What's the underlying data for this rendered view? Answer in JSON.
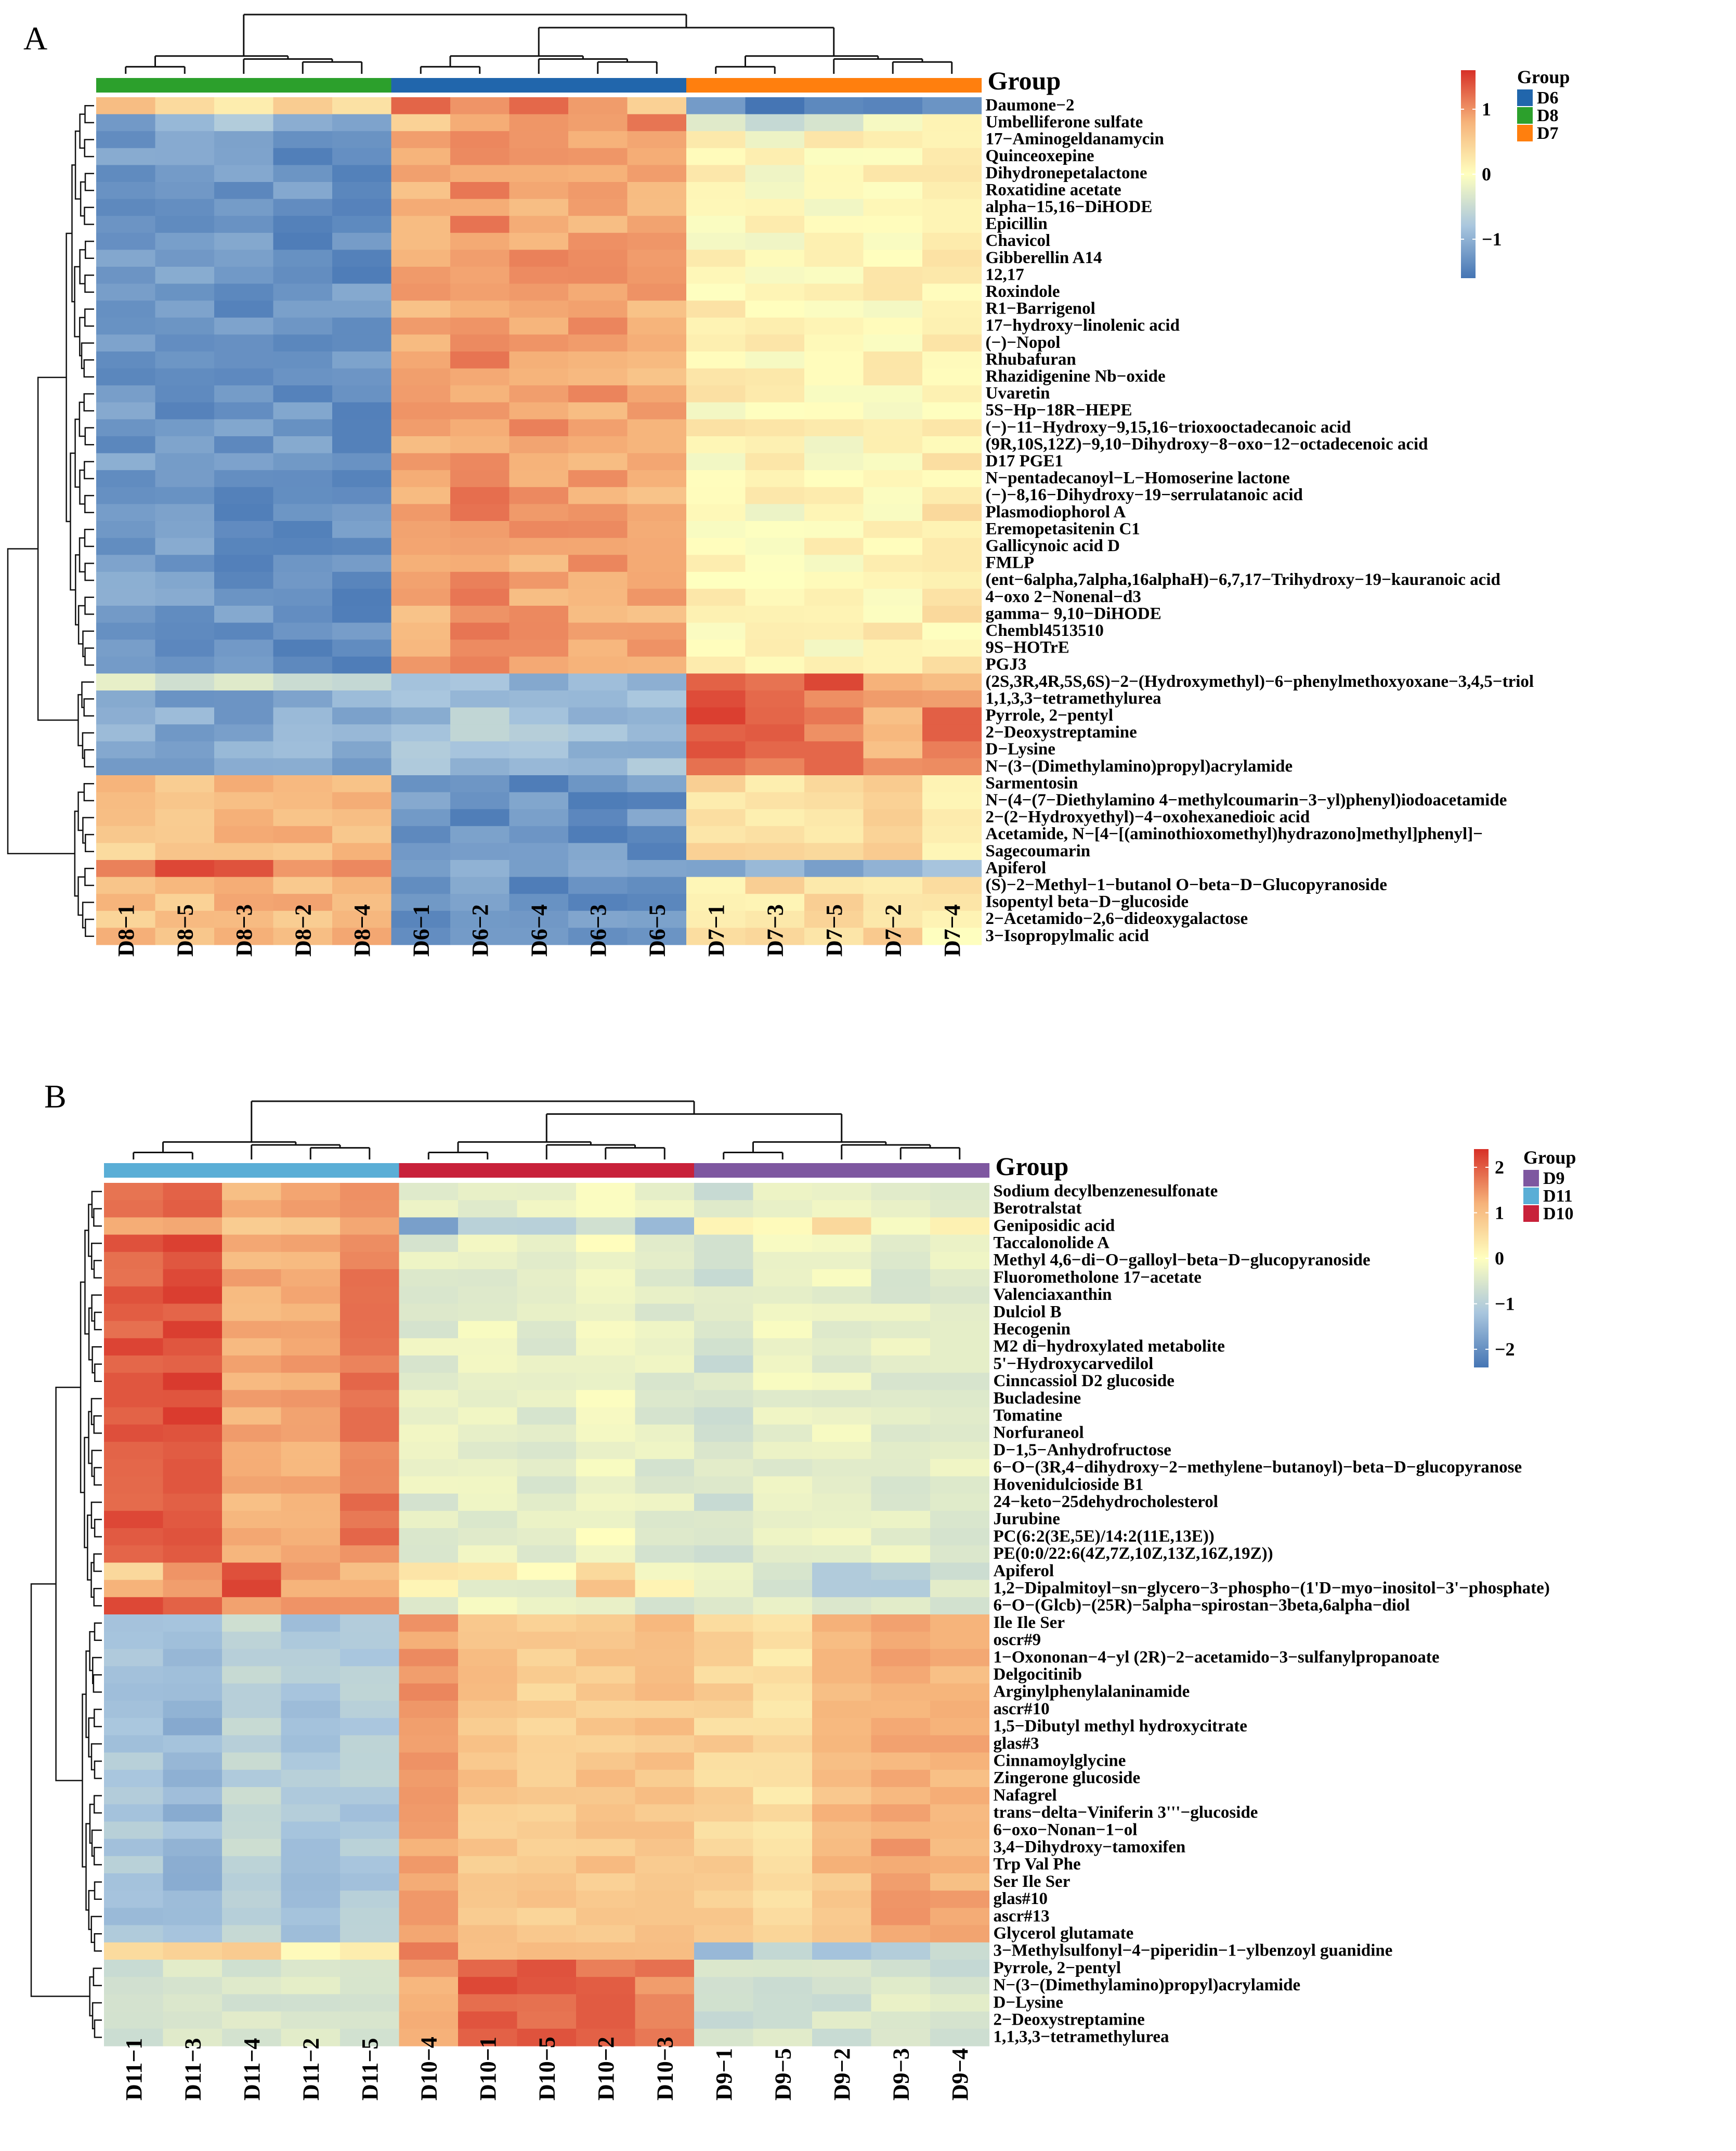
{
  "colors": {
    "scale": [
      "#4575b4",
      "#a9c6de",
      "#ffffbf",
      "#f6b37a",
      "#d73027"
    ],
    "tree": "#111111"
  },
  "chart_data": [
    {
      "type": "heatmap",
      "panel": "A",
      "group_title": "Group",
      "columns": [
        "D8-1",
        "D8-5",
        "D8-3",
        "D8-2",
        "D8-4",
        "D6-1",
        "D6-2",
        "D6-4",
        "D6-3",
        "D6-5",
        "D7-1",
        "D7-3",
        "D7-5",
        "D7-2",
        "D7-4"
      ],
      "column_groups": [
        "D8",
        "D8",
        "D8",
        "D8",
        "D8",
        "D6",
        "D6",
        "D6",
        "D6",
        "D6",
        "D7",
        "D7",
        "D7",
        "D7",
        "D7"
      ],
      "group_colors": {
        "D6": "#2166ac",
        "D8": "#2ca02c",
        "D7": "#ff7f0e"
      },
      "legend_groups": [
        "D6",
        "D8",
        "D7"
      ],
      "color_range": [
        -1.6,
        1.6
      ],
      "color_ticks": [
        1,
        0,
        -1
      ],
      "rows": [
        "Daumone-2",
        "Umbelliferone sulfate",
        "17-Aminogeldanamycin",
        "Quinceoxepine",
        "Dihydronepetalactone",
        "Roxatidine acetate",
        "alpha-15,16-DiHODE",
        "Epicillin",
        "Chavicol",
        "Gibberellin A14",
        "12,17",
        "Roxindole",
        "R1-Barrigenol",
        "17-hydroxy-linolenic acid",
        "(-)-Nopol",
        "Rhubafuran",
        "Rhazidigenine Nb-oxide",
        "Uvaretin",
        "5S-Hp-18R-HEPE",
        "(-)-11-Hydroxy-9,15,16-trioxooctadecanoic acid",
        "(9R,10S,12Z)-9,10-Dihydroxy-8-oxo-12-octadecenoic acid",
        "D17 PGE1",
        "N-pentadecanoyl-L-Homoserine lactone",
        "(-)-8,16-Dihydroxy-19-serrulatanoic acid",
        "Plasmodiophorol A",
        "Eremopetasitenin C1",
        "Gallicynoic acid D",
        "FMLP",
        "(ent-6alpha,7alpha,16alphaH)-6,7,17-Trihydroxy-19-kauranoic acid",
        "4-oxo 2-Nonenal-d3",
        "gamma- 9,10-DiHODE",
        "Chembl4513510",
        "9S-HOTrE",
        "PGJ3",
        "(2S,3R,4R,5S,6S)-2-(Hydroxymethyl)-6-phenylmethoxyoxane-3,4,5-triol",
        "1,1,3,3-tetramethylurea",
        "Pyrrole, 2-pentyl",
        "2-Deoxystreptamine",
        "D-Lysine",
        "N-(3-(Dimethylamino)propyl)acrylamide",
        "Sarmentosin",
        "N-(4-(7-Diethylamino 4-methylcoumarin-3-yl)phenyl)iodoacetamide",
        "2-(2-Hydroxyethyl)-4-oxohexanedioic acid",
        "Acetamide, N-[4-[(aminothioxomethyl)hydrazono]methyl]phenyl]-",
        "Sagecoumarin",
        "Apiferol",
        "(S)-2-Methyl-1-butanol O-beta-D-Glucopyranoside",
        "Isopentyl beta-D-glucoside",
        "2-Acetamido-2,6-dideoxygalactose",
        "3-Isopropylmalic acid"
      ],
      "row_clusters": [
        {
          "count": 34,
          "values": [
            -1.2,
            -1.25,
            -1.3,
            -1.3,
            -1.3,
            0.8,
            1.0,
            0.9,
            0.9,
            0.8,
            0.1,
            0.05,
            0.05,
            0.1,
            0.2
          ]
        },
        {
          "count": 6,
          "values": [
            -1.1,
            -1.1,
            -1.1,
            -1.1,
            -1.1,
            -0.9,
            -0.8,
            -0.9,
            -0.9,
            -0.9,
            1.3,
            1.3,
            1.2,
            0.8,
            1.1
          ]
        },
        {
          "count": 10,
          "values": [
            0.6,
            0.6,
            0.7,
            0.7,
            0.7,
            -1.3,
            -1.3,
            -1.3,
            -1.3,
            -1.3,
            0.3,
            0.3,
            0.3,
            0.4,
            0.2
          ]
        }
      ],
      "special_rows": {
        "0": [
          0.6,
          0.4,
          0.3,
          0.5,
          0.2,
          1.2,
          1.0,
          1.1,
          0.8,
          0.4,
          -1.4,
          -1.4,
          -1.4,
          -1.4,
          -1.4
        ],
        "1": [
          -1.2,
          -1.0,
          -0.9,
          -1.2,
          -1.1,
          0.5,
          0.9,
          0.8,
          1.0,
          1.4,
          -0.2,
          -0.5,
          -0.4,
          0.1,
          0.2
        ],
        "34": [
          -0.4,
          -0.3,
          -0.2,
          -0.3,
          -0.5,
          -0.9,
          -1.0,
          -1.0,
          -1.0,
          -1.0,
          1.4,
          1.3,
          1.5,
          1.0,
          0.8
        ],
        "45": [
          0.9,
          1.4,
          1.5,
          0.9,
          1.1,
          -1.0,
          -1.0,
          -1.0,
          -1.0,
          -1.0,
          -1.0,
          -1.0,
          -1.0,
          -1.0,
          -1.0
        ]
      }
    },
    {
      "type": "heatmap",
      "panel": "B",
      "group_title": "Group",
      "columns": [
        "D11-1",
        "D11-3",
        "D11-4",
        "D11-2",
        "D11-5",
        "D10-4",
        "D10-1",
        "D10-5",
        "D10-2",
        "D10-3",
        "D9-1",
        "D9-5",
        "D9-2",
        "D9-3",
        "D9-4"
      ],
      "column_groups": [
        "D11",
        "D11",
        "D11",
        "D11",
        "D11",
        "D10",
        "D10",
        "D10",
        "D10",
        "D10",
        "D9",
        "D9",
        "D9",
        "D9",
        "D9"
      ],
      "group_colors": {
        "D9": "#7e57a0",
        "D11": "#5aaed6",
        "D10": "#c8213a"
      },
      "legend_groups": [
        "D9",
        "D11",
        "D10"
      ],
      "color_range": [
        -2.4,
        2.4
      ],
      "color_ticks": [
        2,
        1,
        0,
        -1,
        -2
      ],
      "rows": [
        "Sodium decylbenzenesulfonate",
        "Berotralstat",
        "Geniposidic acid",
        "Taccalonolide A",
        "Methyl 4,6-di-O-galloyl-beta-D-glucopyranoside",
        "Fluorometholone 17-acetate",
        "Valenciaxanthin",
        "Dulciol B",
        "Hecogenin",
        "M2 di-hydroxylated metabolite",
        "5'-Hydroxycarvedilol",
        "Cinncassiol D2 glucoside",
        "Bucladesine",
        "Tomatine",
        "Norfuraneol",
        "D-1,5-Anhydrofructose",
        "6-O-(3R,4-dihydroxy-2-methylene-butanoyl)-beta-D-glucopyranose",
        "Hovenidulcioside B1",
        "24-keto-25dehydrocholesterol",
        "Jurubine",
        "PC(6:2(3E,5E)/14:2(11E,13E))",
        "PE(0:0/22:6(4Z,7Z,10Z,13Z,16Z,19Z))",
        "Apiferol",
        "1,2-Dipalmitoyl-sn-glycero-3-phospho-(1'D-myo-inositol-3'-phosphate)",
        "6-O-(Glcb)-(25R)-5alpha-spirostan-3beta,6alpha-diol",
        "Ile Ile Ser",
        "oscr#9",
        "1-Oxononan-4-yl (2R)-2-acetamido-3-sulfanylpropanoate",
        "Delgocitinib",
        "Arginylphenylalaninamide",
        "ascr#10",
        "1,5-Dibutyl methyl hydroxycitrate",
        "glas#3",
        "Cinnamoylglycine",
        "Zingerone glucoside",
        "Nafagrel",
        "trans-delta-Viniferin 3'''-glucoside",
        "6-oxo-Nonan-1-ol",
        "3,4-Dihydroxy-tamoxifen",
        "Trp Val Phe",
        "Ser Ile Ser",
        "glas#10",
        "ascr#13",
        "Glycerol glutamate",
        "3-Methylsulfonyl-4-piperidin-1-ylbenzoyl guanidine",
        "Pyrrole, 2-pentyl",
        "N-(3-(Dimethylamino)propyl)acrylamide",
        "D-Lysine",
        "2-Deoxystreptamine",
        "1,1,3,3-tetramethylurea"
      ],
      "row_clusters": [
        {
          "count": 25,
          "values": [
            2.0,
            2.1,
            1.2,
            1.3,
            1.7,
            -0.4,
            -0.3,
            -0.4,
            -0.1,
            -0.4,
            -0.6,
            -0.3,
            -0.3,
            -0.4,
            -0.4
          ]
        },
        {
          "count": 20,
          "values": [
            -1.2,
            -1.4,
            -0.9,
            -1.2,
            -1.1,
            1.4,
            0.9,
            0.8,
            0.9,
            0.9,
            0.7,
            0.5,
            1.0,
            1.3,
            1.2
          ]
        },
        {
          "count": 5,
          "values": [
            -0.6,
            -0.6,
            -0.6,
            -0.5,
            -0.6,
            1.3,
            2.0,
            2.0,
            1.9,
            1.6,
            -0.6,
            -0.6,
            -0.6,
            -0.5,
            -0.6
          ]
        }
      ],
      "special_rows": {
        "2": [
          1.3,
          1.3,
          1.0,
          0.9,
          1.1,
          -1.6,
          -0.8,
          -1.0,
          -0.8,
          -1.6,
          0.3,
          0.1,
          0.6,
          0.0,
          0.1
        ],
        "22": [
          0.6,
          1.3,
          2.0,
          1.6,
          1.0,
          0.6,
          0.2,
          0.0,
          0.8,
          -0.2,
          -0.4,
          -0.6,
          -1.0,
          -1.0,
          -0.6
        ],
        "23": [
          1.1,
          1.5,
          2.2,
          1.0,
          1.2,
          0.1,
          -0.2,
          -0.4,
          0.9,
          0.0,
          -0.4,
          -0.6,
          -1.1,
          -1.1,
          -0.5
        ],
        "44": [
          0.4,
          0.8,
          1.0,
          0.3,
          0.5,
          1.6,
          1.1,
          1.2,
          1.2,
          1.0,
          -1.2,
          -0.8,
          -1.4,
          -1.0,
          -0.8
        ]
      }
    }
  ]
}
